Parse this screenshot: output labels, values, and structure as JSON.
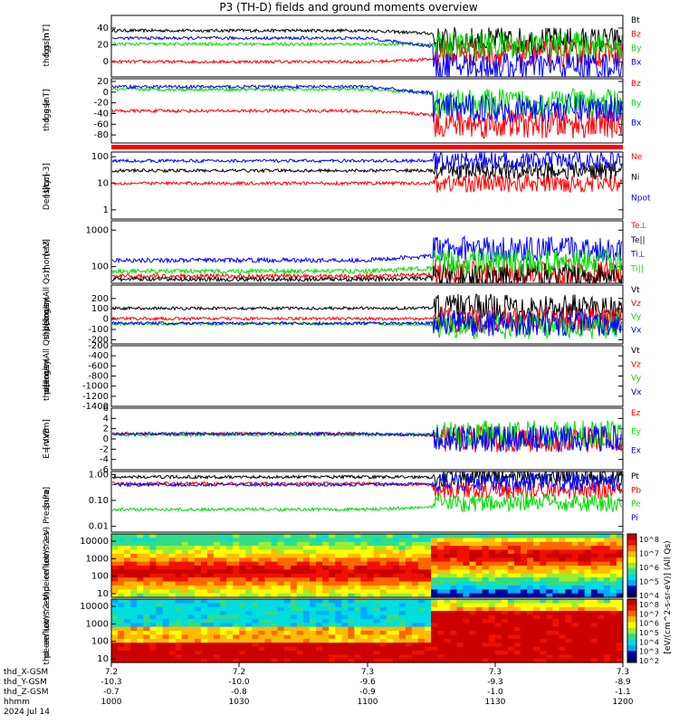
{
  "title": "P3 (TH-D) fields and ground moments overview",
  "colors": {
    "black": "#000000",
    "red": "#ff0000",
    "green": "#00dd00",
    "blue": "#0000ff"
  },
  "chart_data": [
    {
      "type": "line",
      "panel": "fgs_gsm",
      "ylabel": [
        "thd",
        "fgs",
        "gsm",
        "[nT]"
      ],
      "ylim": [
        -18,
        55
      ],
      "yticks": [
        "40",
        "20",
        "0",
        "-20"
      ],
      "series": [
        {
          "name": "Bt",
          "color": "black",
          "level_early": 37,
          "level_late": 25
        },
        {
          "name": "Bz",
          "color": "red",
          "level_early": 0,
          "level_late": 10
        },
        {
          "name": "By",
          "color": "green",
          "level_early": 21,
          "level_late": 20
        },
        {
          "name": "Bx",
          "color": "blue",
          "level_early": 28,
          "level_late": -5
        }
      ]
    },
    {
      "type": "line",
      "panel": "fgs_gse",
      "ylabel": [
        "thd",
        "fgs",
        "gse",
        "[nT]"
      ],
      "ylim": [
        -95,
        25
      ],
      "yticks": [
        "20",
        "0",
        "-20",
        "-40",
        "-60",
        "-80"
      ],
      "series": [
        {
          "name": "Bz",
          "color": "red",
          "level_early": -35,
          "level_late": -60
        },
        {
          "name": "By",
          "color": "green",
          "level_early": 5,
          "level_late": -20
        },
        {
          "name": "Bx",
          "color": "blue",
          "level_early": 10,
          "level_late": -30
        }
      ]
    },
    {
      "type": "line",
      "panel": "density",
      "ylabel": [
        "Density",
        "[1/cc]",
        "[cm-3]"
      ],
      "log": true,
      "ylim": [
        0.45,
        150
      ],
      "yticks": [
        "100",
        "10",
        "1"
      ],
      "series": [
        {
          "name": "Ne",
          "color": "red",
          "level_early": 10,
          "level_late": 10
        },
        {
          "name": "Ni",
          "color": "black",
          "level_early": 30,
          "level_late": 30
        },
        {
          "name": "Npot",
          "color": "blue",
          "level_early": 70,
          "level_late": 70
        }
      ]
    },
    {
      "type": "line",
      "panel": "temperature",
      "ylabel": [
        "mom t3",
        "[eV]"
      ],
      "log": true,
      "ylim": [
        35,
        1800
      ],
      "yticks": [
        "1000",
        "100"
      ],
      "series": [
        {
          "name": "Te⊥",
          "color": "red",
          "level_early": 55,
          "level_late": 70
        },
        {
          "name": "Te||",
          "color": "black",
          "level_early": 45,
          "level_late": 55
        },
        {
          "name": "Ti⊥",
          "color": "blue",
          "level_early": 150,
          "level_late": 300
        },
        {
          "name": "Ti||",
          "color": "green",
          "level_early": 75,
          "level_late": 130
        }
      ]
    },
    {
      "type": "line",
      "panel": "ion_velocity",
      "ylabel": [
        "thd",
        "peir",
        "velocity",
        "gsm",
        "[km/s (All Qs)]"
      ],
      "ylim": [
        -240,
        330
      ],
      "yticks": [
        "200",
        "100",
        "0",
        "-100",
        "-200"
      ],
      "series": [
        {
          "name": "Vt",
          "color": "black",
          "level_early": 105,
          "level_late": 120
        },
        {
          "name": "Vz",
          "color": "red",
          "level_early": 5,
          "level_late": -5
        },
        {
          "name": "Vy",
          "color": "green",
          "level_early": -45,
          "level_late": -70
        },
        {
          "name": "Vx",
          "color": "blue",
          "level_early": -40,
          "level_late": -40
        }
      ]
    },
    {
      "type": "line",
      "panel": "electron_velocity",
      "ylabel": [
        "thd",
        "peer",
        "velocity",
        "gsm",
        "[km/s (All Qs)]"
      ],
      "ylim": [
        -1400,
        -200
      ],
      "yticks": [
        "-200",
        "-400",
        "-600",
        "-800",
        "-1000",
        "-1200",
        "-1400"
      ],
      "series": [
        {
          "name": "Vt",
          "color": "black"
        },
        {
          "name": "Vz",
          "color": "red"
        },
        {
          "name": "Vy",
          "color": "green"
        },
        {
          "name": "Vx",
          "color": "blue"
        }
      ]
    },
    {
      "type": "line",
      "panel": "efield",
      "ylabel": [
        "E=-VxB",
        "[mV/m]"
      ],
      "ylim": [
        -6,
        6
      ],
      "yticks": [
        "6",
        "4",
        "2",
        "0",
        "-2",
        "-4",
        "-6"
      ],
      "series": [
        {
          "name": "Ez",
          "color": "red",
          "level_early": 1,
          "level_late": 0
        },
        {
          "name": "Ey",
          "color": "green",
          "level_early": 0.8,
          "level_late": 1
        },
        {
          "name": "Ex",
          "color": "blue",
          "level_early": 1,
          "level_late": 0
        }
      ]
    },
    {
      "type": "line",
      "panel": "pressure",
      "ylabel": [
        "Pressure",
        "[nPa]"
      ],
      "log": true,
      "ylim": [
        0.006,
        1.3
      ],
      "yticks": [
        "1.00",
        "0.10",
        "0.01"
      ],
      "series": [
        {
          "name": "Pt",
          "color": "black",
          "level_early": 0.8,
          "level_late": 0.8
        },
        {
          "name": "Pb",
          "color": "red",
          "level_early": 0.45,
          "level_late": 0.25
        },
        {
          "name": "Pe",
          "color": "green",
          "level_early": 0.045,
          "level_late": 0.08
        },
        {
          "name": "Pi",
          "color": "blue",
          "level_early": 0.4,
          "level_late": 0.5
        }
      ]
    },
    {
      "type": "heatmap",
      "panel": "ion_spectrogram",
      "ylabel": [
        "thd",
        "peir",
        "en",
        "eflux",
        "eV/",
        "(cm^2-s-",
        "sr-eV)"
      ],
      "yticks": [
        "10000",
        "1000",
        "100",
        "10"
      ],
      "colorbar_ticks": [
        "10^8",
        "10^7",
        "10^6",
        "10^5",
        "10^4"
      ]
    },
    {
      "type": "heatmap",
      "panel": "electron_spectrogram",
      "ylabel": [
        "thd",
        "peer",
        "en",
        "eflux",
        "eV/",
        "(cm^2-s-",
        "sr-eV)"
      ],
      "yticks": [
        "10000",
        "1000",
        "100",
        "10"
      ],
      "colorbar_ticks": [
        "10^8",
        "10^7",
        "10^6",
        "10^5",
        "10^4",
        "10^3",
        "10^2"
      ]
    }
  ],
  "colorbar_label": "[eV/(cm^2-s-sr-eV)] (All Qs)",
  "x_axis": {
    "rows": [
      {
        "label": "thd_X-GSM",
        "values": [
          "7.2",
          "7.2",
          "7.3",
          "7.3",
          "7.3"
        ]
      },
      {
        "label": "thd_Y-GSM",
        "values": [
          "-10.3",
          "-10.0",
          "-9.6",
          "-9.3",
          "-8.9"
        ]
      },
      {
        "label": "thd_Z-GSM",
        "values": [
          "-0.7",
          "-0.8",
          "-0.9",
          "-1.0",
          "-1.1"
        ]
      },
      {
        "label": "hhmm",
        "values": [
          "1000",
          "1030",
          "1100",
          "1130",
          "1200"
        ]
      }
    ],
    "date": "2024 Jul 14"
  }
}
